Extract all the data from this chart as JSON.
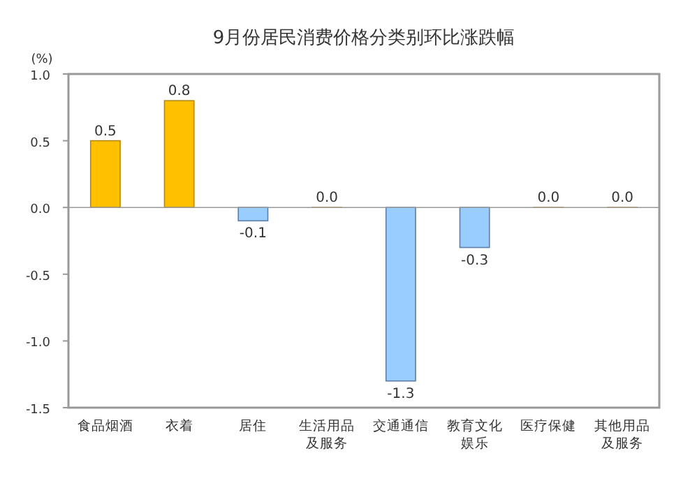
{
  "chart_data": {
    "type": "bar",
    "title": "9月份居民消费价格分类别环比涨跌幅",
    "ylabel": "(%)",
    "categories": [
      "食品烟酒",
      "衣着",
      "居住",
      "生活用品及服务",
      "交通通信",
      "教育文化娱乐",
      "医疗保健",
      "其他用品及服务"
    ],
    "values": [
      0.5,
      0.8,
      -0.1,
      0.0,
      -1.3,
      -0.3,
      0.0,
      0.0
    ],
    "value_labels": [
      "0.5",
      "0.8",
      "-0.1",
      "0.0",
      "-1.3",
      "-0.3",
      "0.0",
      "0.0"
    ],
    "colors": [
      "#ffc000",
      "#ffc000",
      "#99ccff",
      "#ffc000",
      "#99ccff",
      "#99ccff",
      "#ffc000",
      "#ffc000"
    ],
    "ylim": [
      -1.5,
      1.0
    ],
    "yticks": [
      {
        "value": 1.0,
        "label": "1.0"
      },
      {
        "value": 0.5,
        "label": "0.5"
      },
      {
        "value": 0,
        "label": "0.0"
      },
      {
        "value": -0.5,
        "label": "-0.5"
      },
      {
        "value": -1.0,
        "label": "-1.0"
      },
      {
        "value": -1.5,
        "label": "-1.5"
      }
    ]
  }
}
